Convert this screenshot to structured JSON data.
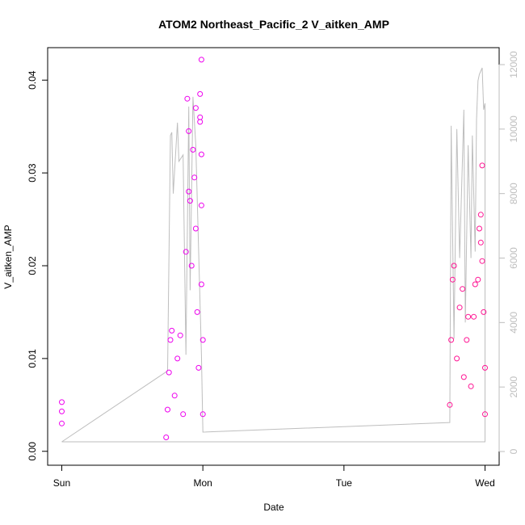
{
  "chart_data": {
    "type": "scatter",
    "title": "ATOM2 Northeast_Pacific_2 V_aitken_AMP",
    "xlabel": "Date",
    "ylabel": "V_aitken_AMP",
    "x_ticks": [
      "Sun",
      "Mon",
      "Tue",
      "Wed"
    ],
    "x_tick_values": [
      0,
      1,
      2,
      3
    ],
    "xlim": [
      -0.1,
      3.1
    ],
    "ylim": [
      -0.0015,
      0.0435
    ],
    "y_ticks": [
      "0.00",
      "0.01",
      "0.02",
      "0.03",
      "0.04"
    ],
    "y_tick_values": [
      0,
      0.01,
      0.02,
      0.03,
      0.04
    ],
    "y2lim": [
      0,
      12000
    ],
    "y2_ticks": [
      "0",
      "2000",
      "4000",
      "6000",
      "8000",
      "10000",
      "12000"
    ],
    "y2_tick_values": [
      0,
      2000,
      4000,
      6000,
      8000,
      10000,
      12000
    ],
    "grid": false,
    "series": [
      {
        "color": "#ee00ee",
        "marker": "open-circle",
        "points": [
          [
            0.0,
            0.0053
          ],
          [
            0.0,
            0.0043
          ],
          [
            0.0,
            0.003
          ],
          [
            0.74,
            0.0015
          ],
          [
            0.75,
            0.0045
          ],
          [
            0.76,
            0.0085
          ],
          [
            0.77,
            0.012
          ],
          [
            0.78,
            0.013
          ],
          [
            0.8,
            0.006
          ],
          [
            0.82,
            0.01
          ],
          [
            0.84,
            0.0125
          ],
          [
            0.86,
            0.004
          ],
          [
            0.88,
            0.0215
          ],
          [
            0.89,
            0.038
          ],
          [
            0.9,
            0.0345
          ],
          [
            0.9,
            0.028
          ],
          [
            0.91,
            0.027
          ],
          [
            0.92,
            0.02
          ],
          [
            0.93,
            0.0325
          ],
          [
            0.94,
            0.0295
          ],
          [
            0.95,
            0.024
          ],
          [
            0.95,
            0.037
          ],
          [
            0.96,
            0.015
          ],
          [
            0.97,
            0.009
          ],
          [
            0.98,
            0.0355
          ],
          [
            0.98,
            0.036
          ],
          [
            0.98,
            0.0385
          ],
          [
            0.99,
            0.0422
          ],
          [
            0.99,
            0.032
          ],
          [
            0.99,
            0.0265
          ],
          [
            0.99,
            0.018
          ],
          [
            1.0,
            0.012
          ],
          [
            1.0,
            0.004
          ]
        ]
      },
      {
        "color": "#ff1493",
        "marker": "open-circle",
        "points": [
          [
            2.75,
            0.005
          ],
          [
            2.76,
            0.012
          ],
          [
            2.77,
            0.0185
          ],
          [
            2.78,
            0.02
          ],
          [
            2.8,
            0.01
          ],
          [
            2.82,
            0.0155
          ],
          [
            2.84,
            0.0175
          ],
          [
            2.85,
            0.008
          ],
          [
            2.87,
            0.012
          ],
          [
            2.88,
            0.0145
          ],
          [
            2.9,
            0.007
          ],
          [
            2.92,
            0.0145
          ],
          [
            2.93,
            0.018
          ],
          [
            2.95,
            0.0185
          ],
          [
            2.96,
            0.024
          ],
          [
            2.97,
            0.0255
          ],
          [
            2.97,
            0.0225
          ],
          [
            2.98,
            0.0205
          ],
          [
            2.98,
            0.0308
          ],
          [
            2.99,
            0.015
          ],
          [
            3.0,
            0.009
          ],
          [
            3.0,
            0.004
          ]
        ]
      },
      {
        "name": "",
        "axis": "right",
        "color": "#bebebe",
        "type": "line",
        "points": [
          [
            0.0,
            300
          ],
          [
            0.75,
            2500
          ],
          [
            0.77,
            9800
          ],
          [
            0.78,
            9900
          ],
          [
            0.79,
            8000
          ],
          [
            0.82,
            10200
          ],
          [
            0.83,
            9000
          ],
          [
            0.86,
            9200
          ],
          [
            0.88,
            3000
          ],
          [
            0.9,
            10700
          ],
          [
            0.91,
            5000
          ],
          [
            0.93,
            11000
          ],
          [
            0.95,
            9500
          ],
          [
            0.99,
            3000
          ],
          [
            1.0,
            600
          ],
          [
            2.75,
            900
          ],
          [
            2.76,
            10100
          ],
          [
            2.78,
            3500
          ],
          [
            2.8,
            10000
          ],
          [
            2.82,
            6000
          ],
          [
            2.85,
            10600
          ],
          [
            2.86,
            4000
          ],
          [
            2.88,
            9500
          ],
          [
            2.9,
            6000
          ],
          [
            2.91,
            9800
          ],
          [
            2.93,
            6200
          ],
          [
            2.94,
            10300
          ],
          [
            2.95,
            11500
          ],
          [
            2.96,
            11700
          ],
          [
            2.98,
            11900
          ],
          [
            2.99,
            10600
          ],
          [
            3.0,
            10800
          ],
          [
            3.0,
            300
          ],
          [
            0.0,
            300
          ]
        ]
      }
    ]
  }
}
